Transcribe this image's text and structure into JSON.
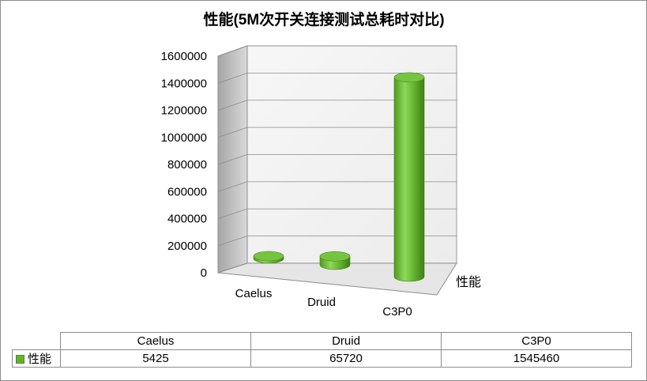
{
  "chart_data": {
    "type": "bar",
    "title": "性能(5M次开关连接测试总耗时对比)",
    "categories": [
      "Caelus",
      "Druid",
      "C3P0"
    ],
    "series": [
      {
        "name": "性能",
        "values": [
          5425,
          65720,
          1545460
        ]
      }
    ],
    "ylim": [
      0,
      1600000
    ],
    "yticks": [
      "0",
      "200000",
      "400000",
      "600000",
      "800000",
      "1000000",
      "1200000",
      "1400000",
      "1600000"
    ],
    "depth_axis_label": "性能",
    "grid": true,
    "bar_shape": "cylinder",
    "bar_color": "#66b032",
    "legend": "data table"
  },
  "table": {
    "headers": [
      "Caelus",
      "Druid",
      "C3P0"
    ],
    "row_label": "性能",
    "values": [
      "5425",
      "65720",
      "1545460"
    ]
  }
}
